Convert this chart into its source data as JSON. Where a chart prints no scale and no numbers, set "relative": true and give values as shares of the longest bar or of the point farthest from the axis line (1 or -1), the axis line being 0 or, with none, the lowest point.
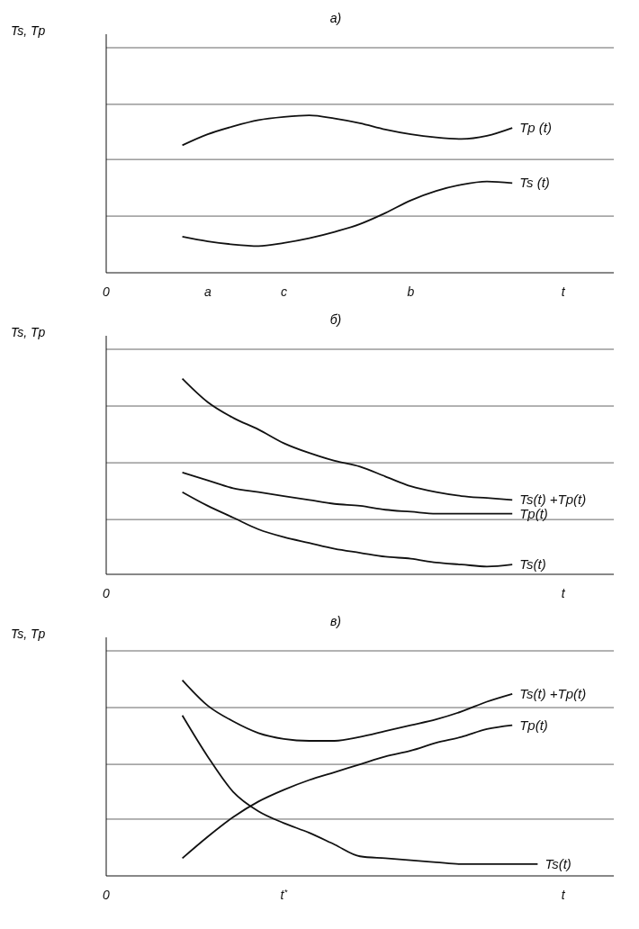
{
  "chart_data": [
    {
      "type": "line",
      "title": "а)",
      "ylabel": "Ts, Tp",
      "relative": true,
      "marker": "none",
      "line_style": "solid",
      "categories": [
        "0",
        null,
        null,
        null,
        "a",
        null,
        null,
        "c",
        null,
        null,
        null,
        null,
        "b",
        null,
        null,
        null,
        null,
        null,
        "t",
        null,
        null
      ],
      "series": [
        {
          "name": "Tp (t)",
          "color": "#111111",
          "values": [
            null,
            null,
            null,
            0.81,
            0.88,
            0.93,
            0.97,
            0.99,
            1,
            0.98,
            0.95,
            0.91,
            0.88,
            0.86,
            0.85,
            0.87,
            0.92,
            null,
            null,
            null,
            null
          ]
        },
        {
          "name": "Ts (t)",
          "color": "#111111",
          "values": [
            null,
            null,
            null,
            0.23,
            0.2,
            0.18,
            0.17,
            0.19,
            0.22,
            0.26,
            0.31,
            0.38,
            0.46,
            0.52,
            0.56,
            0.58,
            0.57,
            null,
            null,
            null,
            null
          ]
        }
      ],
      "ref_lines": [
        {
          "axis": "y",
          "value": 1.43,
          "color": "#666666"
        },
        {
          "axis": "y",
          "value": 1.07,
          "color": "#666666"
        },
        {
          "axis": "y",
          "value": 0.72,
          "color": "#666666"
        },
        {
          "axis": "y",
          "value": 0.36,
          "color": "#666666"
        }
      ]
    },
    {
      "type": "line",
      "title": "б)",
      "ylabel": "Ts, Tp",
      "relative": true,
      "marker": "none",
      "line_style": "solid",
      "categories": [
        "0",
        null,
        null,
        null,
        null,
        null,
        null,
        null,
        null,
        null,
        null,
        null,
        null,
        null,
        null,
        null,
        null,
        null,
        "t",
        null,
        null
      ],
      "series": [
        {
          "name": "Ts(t) +Tp(t)",
          "color": "#111111",
          "values": [
            null,
            null,
            null,
            1,
            0.88,
            0.8,
            0.74,
            0.67,
            0.62,
            0.58,
            0.55,
            0.5,
            0.45,
            0.42,
            0.4,
            0.39,
            0.38,
            null,
            null,
            null,
            null
          ]
        },
        {
          "name": "Tp(t)",
          "color": "#111111",
          "values": [
            null,
            null,
            null,
            0.52,
            0.48,
            0.44,
            0.42,
            0.4,
            0.38,
            0.36,
            0.35,
            0.33,
            0.32,
            0.31,
            0.31,
            0.31,
            0.31,
            null,
            null,
            null,
            null
          ]
        },
        {
          "name": "Ts(t)",
          "color": "#111111",
          "values": [
            null,
            null,
            null,
            0.42,
            0.35,
            0.29,
            0.23,
            0.19,
            0.16,
            0.13,
            0.11,
            0.09,
            0.08,
            0.06,
            0.05,
            0.04,
            0.05,
            null,
            null,
            null,
            null
          ]
        }
      ],
      "ref_lines": [
        {
          "axis": "y",
          "value": 1.15,
          "color": "#666666"
        },
        {
          "axis": "y",
          "value": 0.86,
          "color": "#666666"
        },
        {
          "axis": "y",
          "value": 0.57,
          "color": "#666666"
        },
        {
          "axis": "y",
          "value": 0.28,
          "color": "#666666"
        }
      ]
    },
    {
      "type": "line",
      "title": "в)",
      "ylabel": "Ts, Tp",
      "relative": true,
      "marker": "none",
      "line_style": "solid",
      "categories": [
        "0",
        null,
        null,
        null,
        null,
        null,
        null,
        "t$^{*}$",
        null,
        null,
        null,
        null,
        null,
        null,
        null,
        null,
        null,
        null,
        "t",
        null,
        null
      ],
      "series": [
        {
          "name": "Ts(t) +Tp(t)",
          "color": "#111111",
          "values": [
            null,
            null,
            null,
            1,
            0.87,
            0.79,
            0.73,
            0.7,
            0.69,
            0.69,
            0.71,
            0.74,
            0.77,
            0.8,
            0.84,
            0.89,
            0.93,
            null,
            null,
            null,
            null
          ]
        },
        {
          "name": "Tp(t)",
          "color": "#111111",
          "values": [
            null,
            null,
            null,
            0.09,
            0.2,
            0.3,
            0.38,
            0.44,
            0.49,
            0.53,
            0.57,
            0.61,
            0.64,
            0.68,
            0.71,
            0.75,
            0.77,
            null,
            null,
            null,
            null
          ]
        },
        {
          "name": "Ts(t)",
          "color": "#111111",
          "values": [
            null,
            null,
            null,
            0.82,
            0.61,
            0.43,
            0.33,
            0.27,
            0.22,
            0.16,
            0.1,
            0.09,
            0.08,
            0.07,
            0.06,
            0.06,
            0.06,
            0.06,
            null,
            null,
            null
          ]
        }
      ],
      "ref_lines": [
        {
          "axis": "y",
          "value": 1.15,
          "color": "#666666"
        },
        {
          "axis": "y",
          "value": 0.86,
          "color": "#666666"
        },
        {
          "axis": "y",
          "value": 0.57,
          "color": "#666666"
        },
        {
          "axis": "y",
          "value": 0.29,
          "color": "#666666"
        }
      ]
    }
  ]
}
